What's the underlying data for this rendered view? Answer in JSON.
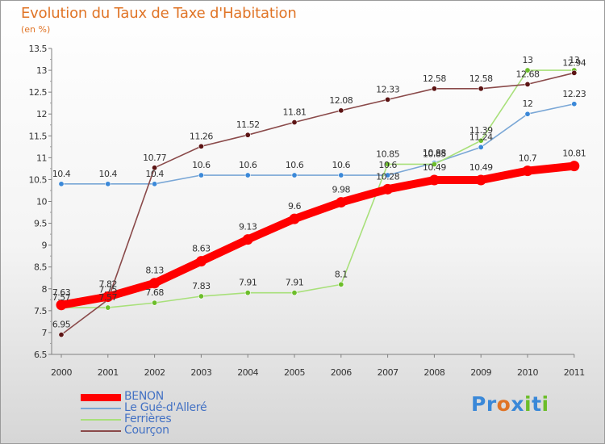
{
  "header": {
    "title": "Evolution du Taux de Taxe d'Habitation",
    "unit": "(en %)"
  },
  "brand": {
    "parts": [
      "Pr",
      "o",
      "x",
      "i",
      "t",
      "i"
    ],
    "colors": [
      "#3a88d8",
      "#e07426",
      "#3a88d8",
      "#6cbd2a",
      "#3a88d8",
      "#6cbd2a"
    ]
  },
  "chart_data": {
    "type": "line",
    "title": "Evolution du Taux de Taxe d'Habitation",
    "ylabel": "(en %)",
    "xlabel": "",
    "x": [
      "2000",
      "2001",
      "2002",
      "2003",
      "2004",
      "2005",
      "2006",
      "2007",
      "2008",
      "2009",
      "2010",
      "2011"
    ],
    "ylim": [
      6.5,
      13.5
    ],
    "yticks": [
      "6.5",
      "7",
      "7.5",
      "8",
      "8.5",
      "9",
      "9.5",
      "10",
      "10.5",
      "11",
      "11.5",
      "12",
      "12.5",
      "13",
      "13.5"
    ],
    "grid": false,
    "legend_position": "bottom-left",
    "series": [
      {
        "name": "BENON",
        "color": "#ff0000",
        "marker_color": "#ff0000",
        "style": "thick",
        "values": [
          7.63,
          7.82,
          8.13,
          8.63,
          9.13,
          9.6,
          9.98,
          10.28,
          10.49,
          10.49,
          10.7,
          10.81
        ],
        "labels": [
          "7.63",
          "7.82",
          "8.13",
          "8.63",
          "9.13",
          "9.6",
          "9.98",
          "10.28",
          "10.49",
          "10.49",
          "10.7",
          "10.81"
        ]
      },
      {
        "name": "Le Gué-d'Alleré",
        "color": "#7aa7d6",
        "marker_color": "#3a88d8",
        "style": "thin",
        "values": [
          10.4,
          10.4,
          10.4,
          10.6,
          10.6,
          10.6,
          10.6,
          10.6,
          10.88,
          11.24,
          12.0,
          12.23
        ],
        "labels": [
          "10.4",
          "10.4",
          "10.4",
          "10.6",
          "10.6",
          "10.6",
          "10.6",
          "10.6",
          "10.88",
          "11.24",
          "12",
          "12.23"
        ]
      },
      {
        "name": "Ferrières",
        "color": "#a8e07a",
        "marker_color": "#6cbd2a",
        "style": "thin",
        "values": [
          7.57,
          7.57,
          7.68,
          7.83,
          7.91,
          7.91,
          8.1,
          10.85,
          10.85,
          11.39,
          13.0,
          13.0
        ],
        "labels": [
          "7.57",
          "7.57",
          "7.68",
          "7.83",
          "7.91",
          "7.91",
          "8.1",
          "10.85",
          "10.85",
          "11.39",
          "13",
          "13"
        ]
      },
      {
        "name": "Courçon",
        "color": "#8a4a4a",
        "marker_color": "#5c1414",
        "style": "thin",
        "values": [
          6.95,
          7.75,
          10.77,
          11.26,
          11.52,
          11.81,
          12.08,
          12.33,
          12.58,
          12.58,
          12.68,
          12.94
        ],
        "labels": [
          "6.95",
          "7.75",
          "10.77",
          "11.26",
          "11.52",
          "11.81",
          "12.08",
          "12.33",
          "12.58",
          "12.58",
          "12.68",
          "12.94"
        ]
      }
    ]
  }
}
